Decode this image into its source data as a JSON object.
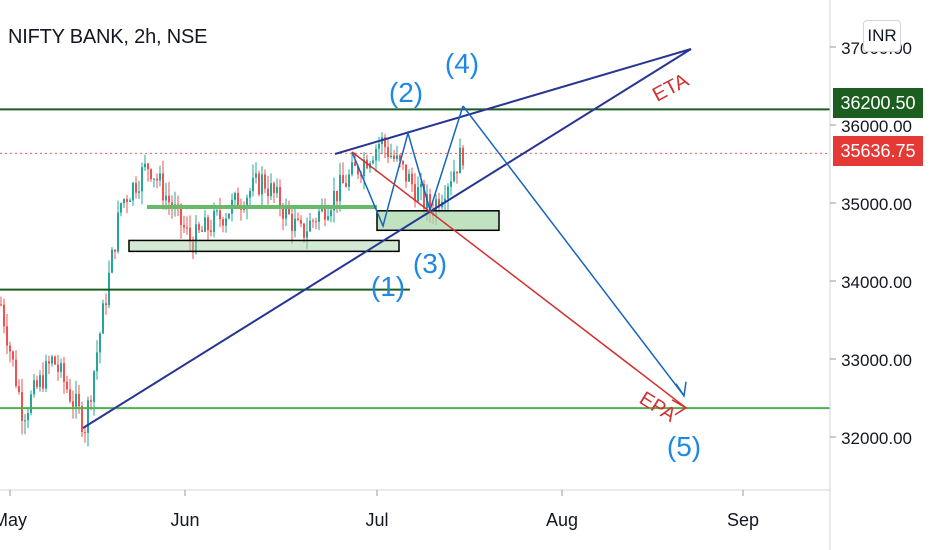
{
  "header": {
    "symbol_title": "NIFTY BANK, 2h, NSE"
  },
  "scale": {
    "currency_label": "INR"
  },
  "price_tags": {
    "resistance": "36200.50",
    "last": "35636.75"
  },
  "colors": {
    "green_line": "#1b5e20",
    "support_line": "#4caf50",
    "trend_line": "#283593",
    "eta_arrow": "#1565c0",
    "epa_arrow": "#d32f2f",
    "wave_label": "#1e88e5",
    "candle_up": "#26a69a",
    "candle_down": "#ef5350",
    "last_price_dots": "#ef5350"
  },
  "annotations": {
    "eta": "ETA",
    "epa": "EPA",
    "waves": [
      "(1)",
      "(2)",
      "(3)",
      "(4)",
      "(5)"
    ]
  },
  "chart_data": {
    "type": "candlestick",
    "title": "NIFTY BANK, 2h, NSE",
    "x_axis": {
      "type": "date",
      "ticks": [
        "May",
        "Jun",
        "Jul",
        "Aug",
        "Sep"
      ]
    },
    "y_axis": {
      "ticks": [
        32000.0,
        33000.0,
        34000.0,
        35000.0,
        36000.0,
        37000.0
      ],
      "currency": "INR",
      "range": [
        31500,
        37500
      ]
    },
    "grid": false,
    "last_price": 35636.75,
    "horizontal_levels": [
      36200.5,
      33890.0,
      32370.0
    ],
    "price_trend": [
      [
        "May",
        33700
      ],
      [
        "May",
        32300
      ],
      [
        "May",
        33000
      ],
      [
        "May",
        32150
      ],
      [
        "Jun",
        35000
      ],
      [
        "Jun",
        35500
      ],
      [
        "Jun",
        34500
      ],
      [
        "Jun",
        35300
      ],
      [
        "Jul",
        34600
      ],
      [
        "Jul",
        35800
      ],
      [
        "Jul",
        34900
      ],
      [
        "Jul",
        35650
      ]
    ],
    "zones": [
      {
        "top": 34900,
        "bottom": 34650
      },
      {
        "top": 34520,
        "bottom": 34380
      }
    ],
    "projection": {
      "target_price": 32400,
      "target_month": "Aug"
    }
  }
}
